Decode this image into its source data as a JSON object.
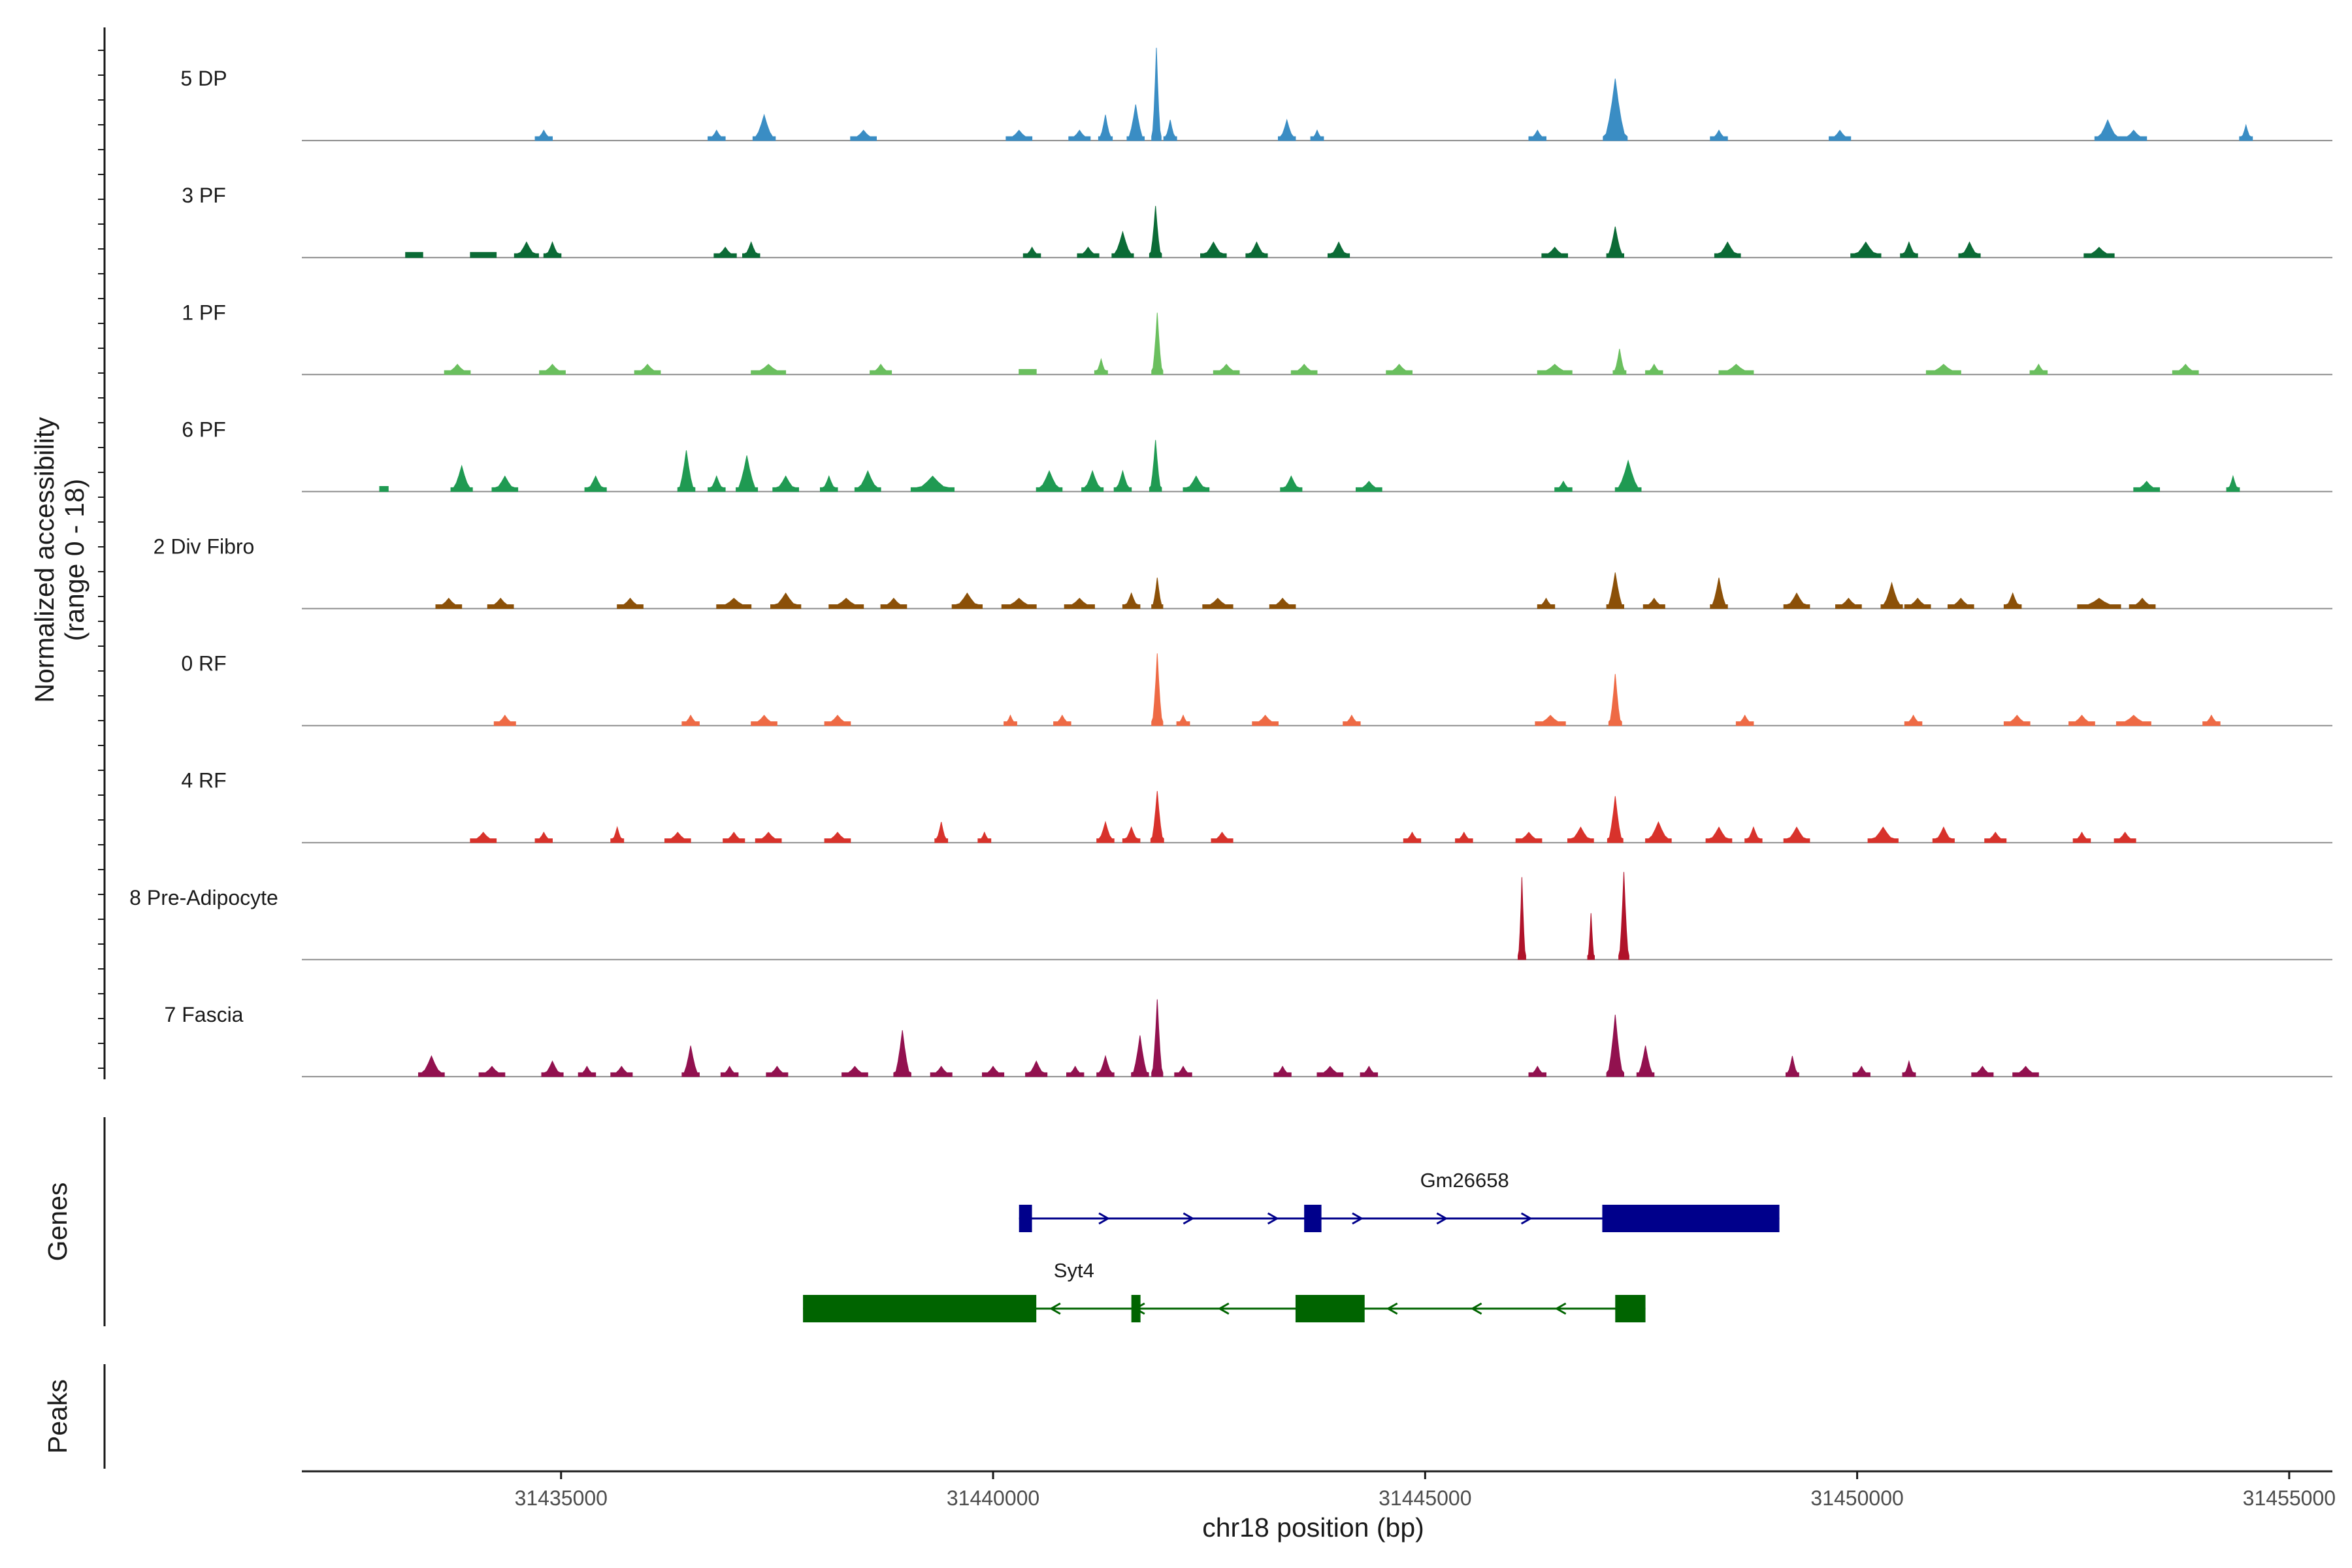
{
  "chart_data": {
    "type": "area",
    "chromosome": "chr18",
    "xlabel": "chr18 position (bp)",
    "xlim": [
      31432000,
      31455500
    ],
    "x_ticks": [
      31435000,
      31440000,
      31445000,
      31450000,
      31455000
    ],
    "x_tick_labels": [
      "31435000",
      "31440000",
      "31445000",
      "31450000",
      "31455000"
    ],
    "coverage": {
      "ylabel_line1": "Normalized accessibility",
      "ylabel_line2": "(range 0 - 18)",
      "ylim": [
        0,
        18
      ],
      "tracks": [
        {
          "name": "5 DP",
          "color": "#3a8dc4",
          "peaks": [
            [
              31434800,
              2,
              200
            ],
            [
              31436800,
              2,
              200
            ],
            [
              31437350,
              5,
              260
            ],
            [
              31438500,
              2,
              300
            ],
            [
              31440300,
              2,
              300
            ],
            [
              31441000,
              2,
              250
            ],
            [
              31441300,
              5,
              160
            ],
            [
              31441650,
              7,
              200
            ],
            [
              31441890,
              18,
              110
            ],
            [
              31442050,
              4,
              150
            ],
            [
              31443400,
              4,
              200
            ],
            [
              31443750,
              2,
              150
            ],
            [
              31446300,
              2,
              200
            ],
            [
              31447200,
              12,
              280
            ],
            [
              31448400,
              2,
              200
            ],
            [
              31449800,
              2,
              250
            ],
            [
              31452900,
              4,
              300
            ],
            [
              31453200,
              2,
              300
            ],
            [
              31454500,
              3,
              150
            ]
          ]
        },
        {
          "name": "3 PF",
          "color": "#0b6b36",
          "peaks": [
            [
              31433300,
              1,
              200
            ],
            [
              31434100,
              1,
              300
            ],
            [
              31434600,
              3,
              280
            ],
            [
              31434900,
              3,
              200
            ],
            [
              31436900,
              2,
              260
            ],
            [
              31437200,
              3,
              200
            ],
            [
              31440450,
              2,
              200
            ],
            [
              31441100,
              2,
              250
            ],
            [
              31441500,
              5,
              250
            ],
            [
              31441880,
              10,
              140
            ],
            [
              31442550,
              3,
              300
            ],
            [
              31443050,
              3,
              250
            ],
            [
              31444000,
              3,
              250
            ],
            [
              31446500,
              2,
              300
            ],
            [
              31447200,
              6,
              200
            ],
            [
              31448500,
              3,
              300
            ],
            [
              31450100,
              3,
              350
            ],
            [
              31450600,
              3,
              200
            ],
            [
              31451300,
              3,
              250
            ],
            [
              31452800,
              2,
              350
            ]
          ]
        },
        {
          "name": "1 PF",
          "color": "#6abf5e",
          "peaks": [
            [
              31433800,
              2,
              300
            ],
            [
              31434900,
              2,
              300
            ],
            [
              31436000,
              2,
              300
            ],
            [
              31437400,
              2,
              400
            ],
            [
              31438700,
              2,
              250
            ],
            [
              31440400,
              1,
              200
            ],
            [
              31441250,
              3,
              150
            ],
            [
              31441900,
              12,
              130
            ],
            [
              31442700,
              2,
              300
            ],
            [
              31443600,
              2,
              300
            ],
            [
              31444700,
              2,
              300
            ],
            [
              31446500,
              2,
              400
            ],
            [
              31447250,
              5,
              150
            ],
            [
              31447650,
              2,
              200
            ],
            [
              31448600,
              2,
              400
            ],
            [
              31451000,
              2,
              400
            ],
            [
              31452100,
              2,
              200
            ],
            [
              31453800,
              2,
              300
            ]
          ]
        },
        {
          "name": "6 PF",
          "color": "#1f9a52",
          "peaks": [
            [
              31432950,
              1,
              100
            ],
            [
              31433850,
              5,
              250
            ],
            [
              31434350,
              3,
              300
            ],
            [
              31435400,
              3,
              250
            ],
            [
              31436450,
              8,
              200
            ],
            [
              31436800,
              3,
              200
            ],
            [
              31437150,
              7,
              250
            ],
            [
              31437600,
              3,
              300
            ],
            [
              31438100,
              3,
              200
            ],
            [
              31438550,
              4,
              300
            ],
            [
              31439300,
              3,
              500
            ],
            [
              31440650,
              4,
              300
            ],
            [
              31441150,
              4,
              250
            ],
            [
              31441500,
              4,
              200
            ],
            [
              31441880,
              10,
              140
            ],
            [
              31442350,
              3,
              300
            ],
            [
              31443450,
              3,
              250
            ],
            [
              31444350,
              2,
              300
            ],
            [
              31446600,
              2,
              200
            ],
            [
              31447350,
              6,
              300
            ],
            [
              31453350,
              2,
              300
            ],
            [
              31454350,
              3,
              150
            ]
          ]
        },
        {
          "name": "2 Div Fibro",
          "color": "#8b5008",
          "peaks": [
            [
              31433700,
              2,
              300
            ],
            [
              31434300,
              2,
              300
            ],
            [
              31435800,
              2,
              300
            ],
            [
              31437000,
              2,
              400
            ],
            [
              31437600,
              3,
              350
            ],
            [
              31438300,
              2,
              400
            ],
            [
              31438850,
              2,
              300
            ],
            [
              31439700,
              3,
              350
            ],
            [
              31440300,
              2,
              400
            ],
            [
              31441000,
              2,
              350
            ],
            [
              31441600,
              3,
              200
            ],
            [
              31441900,
              6,
              130
            ],
            [
              31442600,
              2,
              350
            ],
            [
              31443350,
              2,
              300
            ],
            [
              31446400,
              2,
              200
            ],
            [
              31447200,
              7,
              200
            ],
            [
              31447650,
              2,
              250
            ],
            [
              31448400,
              6,
              200
            ],
            [
              31449300,
              3,
              300
            ],
            [
              31449900,
              2,
              300
            ],
            [
              31450400,
              5,
              250
            ],
            [
              31450700,
              2,
              300
            ],
            [
              31451200,
              2,
              300
            ],
            [
              31451800,
              3,
              200
            ],
            [
              31452800,
              2,
              500
            ],
            [
              31453300,
              2,
              300
            ]
          ]
        },
        {
          "name": "0 RF",
          "color": "#ee6a45",
          "peaks": [
            [
              31434350,
              2,
              250
            ],
            [
              31436500,
              2,
              200
            ],
            [
              31437350,
              2,
              300
            ],
            [
              31438200,
              2,
              300
            ],
            [
              31440200,
              2,
              150
            ],
            [
              31440800,
              2,
              200
            ],
            [
              31441900,
              14,
              130
            ],
            [
              31442200,
              2,
              150
            ],
            [
              31443150,
              2,
              300
            ],
            [
              31444150,
              2,
              200
            ],
            [
              31446450,
              2,
              350
            ],
            [
              31447200,
              10,
              150
            ],
            [
              31448700,
              2,
              200
            ],
            [
              31450650,
              2,
              200
            ],
            [
              31451850,
              2,
              300
            ],
            [
              31452600,
              2,
              300
            ],
            [
              31453200,
              2,
              400
            ],
            [
              31454100,
              2,
              200
            ]
          ]
        },
        {
          "name": "4 RF",
          "color": "#d8322b",
          "peaks": [
            [
              31434100,
              2,
              300
            ],
            [
              31434800,
              2,
              200
            ],
            [
              31435650,
              3,
              150
            ],
            [
              31436350,
              2,
              300
            ],
            [
              31437000,
              2,
              250
            ],
            [
              31437400,
              2,
              300
            ],
            [
              31438200,
              2,
              300
            ],
            [
              31439400,
              4,
              150
            ],
            [
              31439900,
              2,
              150
            ],
            [
              31441300,
              4,
              200
            ],
            [
              31441600,
              3,
              200
            ],
            [
              31441900,
              10,
              150
            ],
            [
              31442650,
              2,
              250
            ],
            [
              31444850,
              2,
              200
            ],
            [
              31445450,
              2,
              200
            ],
            [
              31446200,
              2,
              300
            ],
            [
              31446800,
              3,
              300
            ],
            [
              31447200,
              9,
              180
            ],
            [
              31447700,
              4,
              300
            ],
            [
              31448400,
              3,
              300
            ],
            [
              31448800,
              3,
              200
            ],
            [
              31449300,
              3,
              300
            ],
            [
              31450300,
              3,
              350
            ],
            [
              31451000,
              3,
              250
            ],
            [
              31451600,
              2,
              250
            ],
            [
              31452600,
              2,
              200
            ],
            [
              31453100,
              2,
              250
            ]
          ]
        },
        {
          "name": "8 Pre-Adipocyte",
          "color": "#b0132a",
          "peaks": [
            [
              31446120,
              16,
              90
            ],
            [
              31446920,
              9,
              80
            ],
            [
              31447300,
              17,
              120
            ]
          ]
        },
        {
          "name": "7 Fascia",
          "color": "#92114f",
          "peaks": [
            [
              31433500,
              4,
              300
            ],
            [
              31434200,
              2,
              300
            ],
            [
              31434900,
              3,
              250
            ],
            [
              31435300,
              2,
              200
            ],
            [
              31435700,
              2,
              250
            ],
            [
              31436500,
              6,
              200
            ],
            [
              31436950,
              2,
              200
            ],
            [
              31437500,
              2,
              250
            ],
            [
              31438400,
              2,
              300
            ],
            [
              31438950,
              9,
              200
            ],
            [
              31439400,
              2,
              250
            ],
            [
              31440000,
              2,
              250
            ],
            [
              31440500,
              3,
              250
            ],
            [
              31440950,
              2,
              200
            ],
            [
              31441300,
              4,
              200
            ],
            [
              31441700,
              8,
              200
            ],
            [
              31441900,
              15,
              130
            ],
            [
              31442200,
              2,
              200
            ],
            [
              31443350,
              2,
              200
            ],
            [
              31443900,
              2,
              300
            ],
            [
              31444350,
              2,
              200
            ],
            [
              31446300,
              2,
              200
            ],
            [
              31447200,
              12,
              200
            ],
            [
              31447550,
              6,
              200
            ],
            [
              31449250,
              4,
              150
            ],
            [
              31450050,
              2,
              200
            ],
            [
              31450600,
              3,
              150
            ],
            [
              31451450,
              2,
              250
            ],
            [
              31451950,
              2,
              300
            ]
          ]
        }
      ]
    },
    "genes_track": {
      "label": "Genes",
      "genes": [
        {
          "name": "Gm26658",
          "strand": "+",
          "color": "#00008b",
          "start": 31440300,
          "end": 31449100,
          "exons": [
            [
              31440300,
              31440450
            ],
            [
              31443600,
              31443800
            ],
            [
              31447050,
              31449100
            ]
          ]
        },
        {
          "name": "Syt4",
          "strand": "-",
          "color": "#006400",
          "start": 31437800,
          "end": 31447550,
          "exons": [
            [
              31437800,
              31440500
            ],
            [
              31441600,
              31441700
            ],
            [
              31443500,
              31444300
            ],
            [
              31447200,
              31447550
            ]
          ]
        }
      ]
    },
    "peaks_track": {
      "label": "Peaks",
      "peaks": []
    }
  }
}
